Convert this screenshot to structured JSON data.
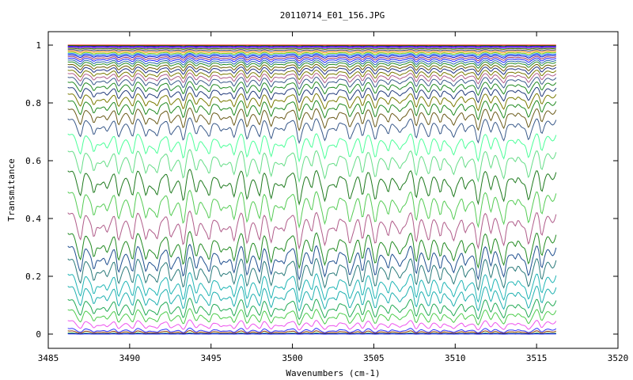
{
  "chart_data": {
    "type": "line",
    "title": "20110714_E01_156.JPG",
    "xlabel": "Wavenumbers (cm-1)",
    "ylabel": "Transmitance",
    "xlim": [
      3485,
      3520
    ],
    "ylim": [
      0,
      1
    ],
    "data_x_range": [
      3486.2,
      3516.2
    ],
    "x_ticks": [
      3485,
      3490,
      3495,
      3500,
      3505,
      3510,
      3515,
      3520
    ],
    "y_ticks": [
      0,
      0.2,
      0.4,
      0.6,
      0.8,
      1
    ],
    "x_tick_labels": [
      "3485",
      "3490",
      "3495",
      "3500",
      "3505",
      "3510",
      "3515",
      "3520"
    ],
    "y_tick_labels": [
      "0",
      "0.2",
      "0.4",
      "0.6",
      "0.8",
      "1"
    ],
    "grid": false,
    "legend": "none",
    "absorption_lines": [
      3487.0,
      3487.8,
      3488.6,
      3489.3,
      3490.2,
      3491.0,
      3491.7,
      3492.5,
      3493.3,
      3494.1,
      3494.9,
      3495.6,
      3496.4,
      3497.2,
      3498.0,
      3498.7,
      3499.5,
      3500.4,
      3501.2,
      3502.0,
      3502.7,
      3503.5,
      3504.3,
      3505.1,
      3505.9,
      3506.6,
      3507.6,
      3508.4,
      3509.1,
      3509.9,
      3510.6,
      3511.4,
      3512.2,
      3513.0,
      3513.7,
      3514.5,
      3515.3
    ],
    "series": [
      {
        "baseline": 1.0,
        "color": "#ff0000"
      },
      {
        "baseline": 0.998,
        "color": "#008800"
      },
      {
        "baseline": 0.996,
        "color": "#0000ff"
      },
      {
        "baseline": 0.994,
        "color": "#ff00ff"
      },
      {
        "baseline": 0.992,
        "color": "#00aaaa"
      },
      {
        "baseline": 0.99,
        "color": "#886600"
      },
      {
        "baseline": 0.986,
        "color": "#333366"
      },
      {
        "baseline": 0.982,
        "color": "#ff8800"
      },
      {
        "baseline": 0.978,
        "color": "#66cc00"
      },
      {
        "baseline": 0.974,
        "color": "#0066ff"
      },
      {
        "baseline": 0.97,
        "color": "#0000cc"
      },
      {
        "baseline": 0.965,
        "color": "#993366"
      },
      {
        "baseline": 0.96,
        "color": "#1a1aff"
      },
      {
        "baseline": 0.954,
        "color": "#2266aa"
      },
      {
        "baseline": 0.948,
        "color": "#228B22"
      },
      {
        "baseline": 0.94,
        "color": "#6b5b00"
      },
      {
        "baseline": 0.932,
        "color": "#1f2f7f"
      },
      {
        "baseline": 0.922,
        "color": "#7a7a00"
      },
      {
        "baseline": 0.912,
        "color": "#b05c8a"
      },
      {
        "baseline": 0.9,
        "color": "#3a5a8a"
      },
      {
        "baseline": 0.885,
        "color": "#228B22"
      },
      {
        "baseline": 0.868,
        "color": "#223a7a"
      },
      {
        "baseline": 0.848,
        "color": "#7a7a00"
      },
      {
        "baseline": 0.826,
        "color": "#208a20"
      },
      {
        "baseline": 0.8,
        "color": "#6b5b1a"
      },
      {
        "baseline": 0.768,
        "color": "#3a5a8a"
      },
      {
        "baseline": 0.72,
        "color": "#4dff99"
      },
      {
        "baseline": 0.665,
        "color": "#66dd88"
      },
      {
        "baseline": 0.6,
        "color": "#1e7a1e"
      },
      {
        "baseline": 0.53,
        "color": "#55cc55"
      },
      {
        "baseline": 0.46,
        "color": "#b05c8a"
      },
      {
        "baseline": 0.39,
        "color": "#228B22"
      },
      {
        "baseline": 0.345,
        "color": "#1f4f8f"
      },
      {
        "baseline": 0.3,
        "color": "#2a7a7a"
      },
      {
        "baseline": 0.245,
        "color": "#1fb5b5"
      },
      {
        "baseline": 0.2,
        "color": "#1fb0b0"
      },
      {
        "baseline": 0.15,
        "color": "#22aa55"
      },
      {
        "baseline": 0.11,
        "color": "#4dcc4d"
      },
      {
        "baseline": 0.065,
        "color": "#ee55ee"
      },
      {
        "baseline": 0.03,
        "color": "#3333ff"
      },
      {
        "baseline": 0.018,
        "color": "#883300"
      },
      {
        "baseline": 0.006,
        "color": "#008800"
      },
      {
        "baseline": 0.002,
        "color": "#0000ff"
      }
    ]
  }
}
